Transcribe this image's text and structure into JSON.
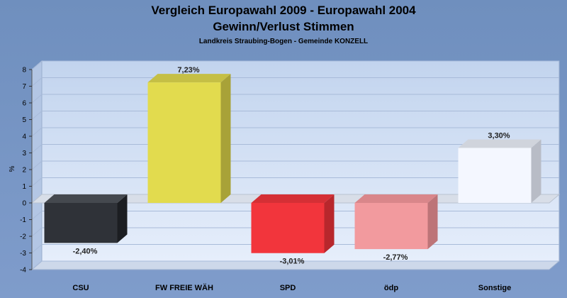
{
  "chart_data": {
    "type": "bar",
    "title_line1": "Vergleich Europawahl 2009 - Europawahl 2004",
    "title_line2": "Gewinn/Verlust Stimmen",
    "subtitle": "Landkreis Straubing-Bogen - Gemeinde KONZELL",
    "ylabel": "%",
    "ylim": [
      -4,
      8
    ],
    "yticks": [
      "-4",
      "-3",
      "-2",
      "-1",
      "0",
      "1",
      "2",
      "3",
      "4",
      "5",
      "6",
      "7",
      "8"
    ],
    "categories": [
      "CSU",
      "FW FREIE WÄH",
      "SPD",
      "ödp",
      "Sonstige"
    ],
    "values": [
      -2.4,
      7.23,
      -3.01,
      -2.77,
      3.3
    ],
    "value_labels": [
      "-2,40%",
      "7,23%",
      "-3,01%",
      "-2,77%",
      "3,30%"
    ],
    "colors": [
      "#2f3238",
      "#e2db4e",
      "#f2353c",
      "#f29a9e",
      "#f4f7ff"
    ],
    "side_colors": [
      "#1c1e22",
      "#a8a238",
      "#b8272c",
      "#bd7478",
      "#b8bcc6"
    ],
    "top_colors": [
      "#45494f",
      "#c5bf45",
      "#d52f35",
      "#d9868a",
      "#d0d4dc"
    ],
    "grid": true
  }
}
